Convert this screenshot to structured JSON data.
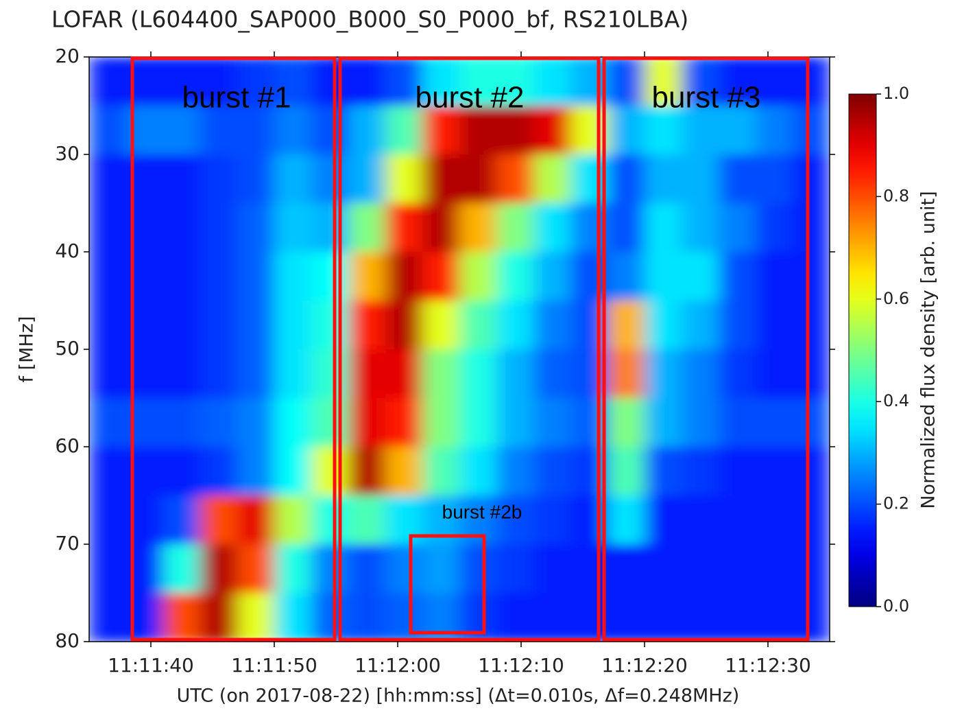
{
  "chart_data": {
    "type": "heatmap",
    "title": "LOFAR  (L604400_SAP000_B000_S0_P000_bf, RS210LBA)",
    "x_label": "UTC (on 2017-08-22) [hh:mm:ss]   (Δt=0.010s, Δf=0.248MHz)",
    "y_label": "f [MHz]",
    "colorbar_label": "Normalized flux density [arb. unit]",
    "colormap": "jet",
    "y_inverted": true,
    "x": [
      40296.5,
      40299.5,
      40302.5,
      40305.5,
      40308.5,
      40311.5,
      40314.5,
      40317.5,
      40320.5,
      40323.5,
      40326.5,
      40329.5,
      40332.5,
      40335.5,
      40338.5,
      40341.5,
      40344.5,
      40347.5,
      40350.5,
      40353.5
    ],
    "y": [
      22.5,
      27.5,
      32.5,
      37.5,
      42.5,
      47.5,
      52.5,
      57.5,
      62.5,
      67.5,
      72.5,
      77.5
    ],
    "values": [
      [
        0.15,
        0.15,
        0.15,
        0.15,
        0.18,
        0.2,
        0.15,
        0.15,
        0.2,
        0.35,
        0.4,
        0.4,
        0.35,
        0.3,
        0.2,
        0.6,
        0.2,
        0.15,
        0.15,
        0.15
      ],
      [
        0.2,
        0.25,
        0.25,
        0.2,
        0.2,
        0.25,
        0.2,
        0.3,
        0.45,
        0.85,
        0.95,
        0.95,
        0.9,
        0.6,
        0.3,
        0.35,
        0.3,
        0.3,
        0.25,
        0.2
      ],
      [
        0.15,
        0.15,
        0.15,
        0.18,
        0.2,
        0.3,
        0.25,
        0.3,
        0.6,
        0.95,
        0.95,
        0.8,
        0.55,
        0.35,
        0.2,
        0.3,
        0.3,
        0.2,
        0.2,
        0.15
      ],
      [
        0.15,
        0.15,
        0.15,
        0.18,
        0.22,
        0.32,
        0.3,
        0.5,
        0.85,
        0.95,
        0.7,
        0.5,
        0.35,
        0.25,
        0.2,
        0.35,
        0.3,
        0.25,
        0.18,
        0.15
      ],
      [
        0.15,
        0.15,
        0.15,
        0.18,
        0.22,
        0.35,
        0.38,
        0.7,
        0.95,
        0.85,
        0.55,
        0.4,
        0.3,
        0.2,
        0.25,
        0.35,
        0.35,
        0.2,
        0.15,
        0.15
      ],
      [
        0.15,
        0.15,
        0.15,
        0.18,
        0.22,
        0.35,
        0.4,
        0.85,
        0.95,
        0.6,
        0.45,
        0.35,
        0.25,
        0.2,
        0.7,
        0.35,
        0.3,
        0.2,
        0.15,
        0.15
      ],
      [
        0.15,
        0.15,
        0.15,
        0.18,
        0.22,
        0.35,
        0.42,
        0.9,
        0.9,
        0.5,
        0.4,
        0.3,
        0.22,
        0.2,
        0.75,
        0.3,
        0.25,
        0.18,
        0.15,
        0.15
      ],
      [
        0.2,
        0.2,
        0.2,
        0.22,
        0.25,
        0.38,
        0.45,
        0.9,
        0.85,
        0.5,
        0.4,
        0.3,
        0.25,
        0.22,
        0.5,
        0.3,
        0.25,
        0.2,
        0.2,
        0.2
      ],
      [
        0.15,
        0.15,
        0.15,
        0.18,
        0.25,
        0.38,
        0.6,
        0.95,
        0.7,
        0.45,
        0.35,
        0.25,
        0.2,
        0.18,
        0.45,
        0.2,
        0.18,
        0.15,
        0.15,
        0.15
      ],
      [
        0.15,
        0.15,
        0.2,
        0.8,
        0.9,
        0.55,
        0.4,
        0.45,
        0.35,
        0.3,
        0.25,
        0.2,
        0.18,
        0.15,
        0.35,
        0.15,
        0.15,
        0.15,
        0.15,
        0.15
      ],
      [
        0.15,
        0.15,
        0.4,
        0.95,
        0.8,
        0.4,
        0.25,
        0.2,
        0.25,
        0.28,
        0.2,
        0.18,
        0.15,
        0.15,
        0.15,
        0.15,
        0.15,
        0.15,
        0.15,
        0.15
      ],
      [
        0.15,
        0.15,
        0.8,
        0.95,
        0.6,
        0.35,
        0.22,
        0.2,
        0.22,
        0.25,
        0.18,
        0.15,
        0.15,
        0.15,
        0.15,
        0.15,
        0.15,
        0.15,
        0.15,
        0.15
      ]
    ],
    "xlim": [
      40295,
      40355
    ],
    "xticks": [
      {
        "value": 40300,
        "label": "11:11:40"
      },
      {
        "value": 40310,
        "label": "11:11:50"
      },
      {
        "value": 40320,
        "label": "11:12:00"
      },
      {
        "value": 40330,
        "label": "11:12:10"
      },
      {
        "value": 40340,
        "label": "11:12:20"
      },
      {
        "value": 40350,
        "label": "11:12:30"
      }
    ],
    "ylim": [
      20,
      80
    ],
    "yticks": [
      20,
      30,
      40,
      50,
      60,
      70,
      80
    ],
    "clim": [
      0,
      1
    ],
    "cticks": [
      {
        "value": 0,
        "label": "0.0"
      },
      0.2,
      0.4,
      0.6,
      0.8,
      {
        "value": 1,
        "label": "1.0"
      }
    ],
    "annotations": [
      "burst #1",
      "burst #2",
      "burst #3",
      "burst #2b"
    ]
  }
}
